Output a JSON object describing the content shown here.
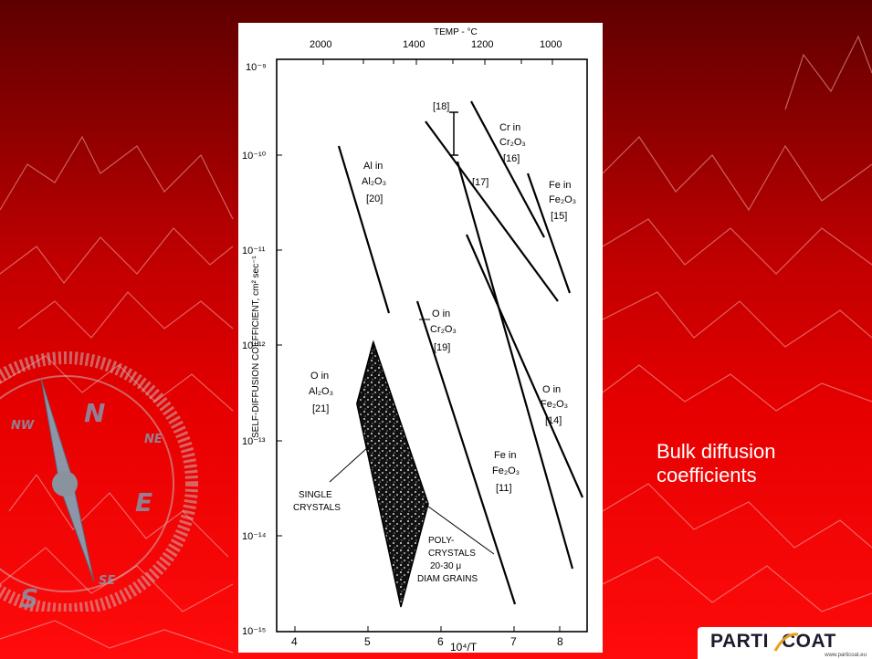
{
  "slide": {
    "caption_line1": "Bulk diffusion",
    "caption_line2": "coefficients",
    "background_top": "#5e0000",
    "background_bottom": "#ff0b0b"
  },
  "compass": {
    "letters": {
      "n": "N",
      "s": "S",
      "e": "E",
      "nw": "NW",
      "ne": "NE",
      "se": "SE"
    }
  },
  "logo": {
    "text_a": "PARTI",
    "text_b": "COAT",
    "url": "www.particoat.eu",
    "accent": "#e8a020"
  },
  "figure": {
    "top_axis_title": "TEMP - °C",
    "top_ticks": [
      "2000",
      "1400",
      "1200",
      "1000"
    ],
    "y_axis_title": "SELF-DIFFUSION COEFFICIENT, cm² sec⁻¹",
    "y_ticks": [
      "10⁻⁹",
      "10⁻¹⁰",
      "10⁻¹¹",
      "10⁻¹²",
      "10⁻¹³",
      "10⁻¹⁴",
      "10⁻¹⁵"
    ],
    "x_ticks": [
      "4",
      "5",
      "6",
      "7",
      "8"
    ],
    "x_axis_title": "10⁴/T",
    "labels": {
      "ref18": "[18]",
      "cr_in": "Cr in",
      "cr2o3": "Cr₂O₃",
      "ref16": "[16]",
      "ref17": "[17]",
      "fe_in_a": "Fe in",
      "fe2o3_a": "Fe₂O₃",
      "ref15": "[15]",
      "al_in": "Al in",
      "al2o3_a": "Al₂O₃",
      "ref20": "[20]",
      "o_in_cr": "O in",
      "cr2o3_b": "Cr₂O₃",
      "ref19": "[19]",
      "o_in_al": "O in",
      "al2o3_b": "Al₂O₃",
      "ref21": "[21]",
      "o_in_fe": "O in",
      "fe2o3_b": "Fe₂O₃",
      "ref14": "[14]",
      "fe_in_b": "Fe in",
      "fe2o3_c": "Fe₂O₃",
      "ref11": "[11]",
      "single": "SINGLE",
      "crystals": "CRYSTALS",
      "poly": "POLY-",
      "crystals2": "CRYSTALS",
      "grains1": "20-30 μ",
      "grains2": "DIAM GRAINS"
    }
  }
}
